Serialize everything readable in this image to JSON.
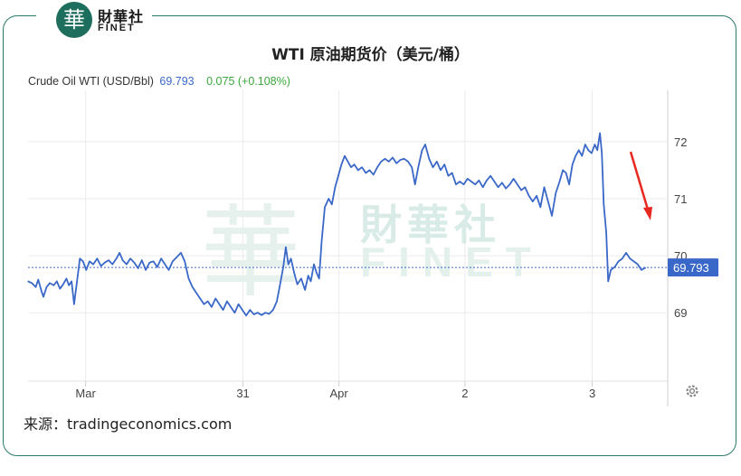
{
  "brand": {
    "logo_glyph": "華",
    "name_cn": "財華社",
    "name_en": "FINET",
    "color": "#1e6e5e"
  },
  "source": "来源：tradingeconomics.com",
  "settings_icon": "gear-icon",
  "chart_data": {
    "type": "line",
    "title": "WTI 原油期货价（美元/桶）",
    "legend": {
      "name": "Crude Oil WTI (USD/Bbl)",
      "value": "69.793",
      "change": "0.075 (+0.108%)"
    },
    "line_color": "#3a68c8",
    "last_value": 69.793,
    "last_value_label": "69.793",
    "ylim": [
      67.8,
      72.9
    ],
    "yticks": [
      {
        "label": "72",
        "value": 72
      },
      {
        "label": "71",
        "value": 71
      },
      {
        "label": "70",
        "value": 70
      },
      {
        "label": "69",
        "value": 69
      }
    ],
    "xlim": [
      0,
      100
    ],
    "xticks": [
      {
        "label": "Mar",
        "x": 9.0
      },
      {
        "label": "31",
        "x": 33.6
      },
      {
        "label": "Apr",
        "x": 48.6
      },
      {
        "label": "2",
        "x": 68.3
      },
      {
        "label": "3",
        "x": 88.2
      }
    ],
    "grid": true,
    "annotation": "red-arrow-down",
    "series": [
      {
        "values": [
          [
            0.0,
            69.55
          ],
          [
            0.6,
            69.52
          ],
          [
            1.2,
            69.45
          ],
          [
            1.6,
            69.58
          ],
          [
            2.1,
            69.38
          ],
          [
            2.4,
            69.28
          ],
          [
            2.9,
            69.45
          ],
          [
            3.4,
            69.52
          ],
          [
            4.0,
            69.48
          ],
          [
            4.5,
            69.55
          ],
          [
            5.0,
            69.42
          ],
          [
            5.5,
            69.5
          ],
          [
            6.0,
            69.6
          ],
          [
            6.4,
            69.48
          ],
          [
            6.8,
            69.55
          ],
          [
            7.2,
            69.15
          ],
          [
            7.6,
            69.5
          ],
          [
            8.1,
            69.95
          ],
          [
            8.6,
            69.9
          ],
          [
            9.1,
            69.75
          ],
          [
            9.6,
            69.9
          ],
          [
            10.2,
            69.85
          ],
          [
            10.8,
            69.95
          ],
          [
            11.4,
            69.82
          ],
          [
            12.0,
            69.88
          ],
          [
            12.6,
            69.92
          ],
          [
            13.2,
            69.85
          ],
          [
            13.8,
            69.95
          ],
          [
            14.3,
            70.05
          ],
          [
            14.8,
            69.92
          ],
          [
            15.4,
            69.85
          ],
          [
            16.0,
            69.95
          ],
          [
            16.6,
            69.88
          ],
          [
            17.2,
            69.78
          ],
          [
            17.8,
            69.92
          ],
          [
            18.4,
            69.75
          ],
          [
            19.0,
            69.88
          ],
          [
            19.6,
            69.9
          ],
          [
            20.2,
            69.8
          ],
          [
            20.8,
            69.95
          ],
          [
            21.4,
            69.85
          ],
          [
            22.0,
            69.75
          ],
          [
            22.6,
            69.9
          ],
          [
            23.3,
            69.98
          ],
          [
            23.9,
            70.05
          ],
          [
            24.5,
            69.9
          ],
          [
            25.1,
            69.6
          ],
          [
            25.7,
            69.45
          ],
          [
            26.3,
            69.35
          ],
          [
            26.9,
            69.25
          ],
          [
            27.5,
            69.15
          ],
          [
            28.1,
            69.2
          ],
          [
            28.7,
            69.1
          ],
          [
            29.3,
            69.25
          ],
          [
            29.9,
            69.15
          ],
          [
            30.5,
            69.05
          ],
          [
            31.1,
            69.2
          ],
          [
            31.7,
            69.1
          ],
          [
            32.3,
            69.0
          ],
          [
            32.9,
            69.15
          ],
          [
            33.5,
            69.05
          ],
          [
            34.1,
            68.95
          ],
          [
            34.7,
            69.05
          ],
          [
            35.3,
            68.97
          ],
          [
            35.9,
            69.0
          ],
          [
            36.5,
            68.96
          ],
          [
            37.1,
            69.0
          ],
          [
            37.7,
            68.98
          ],
          [
            38.3,
            69.05
          ],
          [
            38.9,
            69.2
          ],
          [
            39.4,
            69.5
          ],
          [
            39.9,
            69.8
          ],
          [
            40.3,
            70.15
          ],
          [
            40.7,
            69.85
          ],
          [
            41.1,
            69.95
          ],
          [
            41.6,
            69.7
          ],
          [
            42.1,
            69.5
          ],
          [
            42.7,
            69.6
          ],
          [
            43.3,
            69.4
          ],
          [
            43.8,
            69.65
          ],
          [
            44.2,
            69.55
          ],
          [
            44.7,
            69.85
          ],
          [
            45.1,
            69.7
          ],
          [
            45.5,
            69.6
          ],
          [
            45.9,
            70.25
          ],
          [
            46.4,
            70.85
          ],
          [
            47.0,
            71.0
          ],
          [
            47.5,
            70.9
          ],
          [
            48.0,
            71.2
          ],
          [
            48.5,
            71.4
          ],
          [
            49.0,
            71.6
          ],
          [
            49.5,
            71.75
          ],
          [
            50.0,
            71.65
          ],
          [
            50.5,
            71.55
          ],
          [
            51.0,
            71.6
          ],
          [
            51.6,
            71.5
          ],
          [
            52.2,
            71.55
          ],
          [
            52.8,
            71.45
          ],
          [
            53.4,
            71.5
          ],
          [
            54.0,
            71.42
          ],
          [
            54.6,
            71.55
          ],
          [
            55.2,
            71.65
          ],
          [
            55.8,
            71.7
          ],
          [
            56.4,
            71.65
          ],
          [
            57.0,
            71.72
          ],
          [
            57.6,
            71.62
          ],
          [
            58.2,
            71.68
          ],
          [
            58.8,
            71.7
          ],
          [
            59.4,
            71.65
          ],
          [
            60.0,
            71.55
          ],
          [
            60.5,
            71.25
          ],
          [
            61.0,
            71.55
          ],
          [
            61.6,
            71.85
          ],
          [
            62.1,
            71.95
          ],
          [
            62.7,
            71.7
          ],
          [
            63.3,
            71.55
          ],
          [
            63.9,
            71.65
          ],
          [
            64.5,
            71.5
          ],
          [
            65.1,
            71.6
          ],
          [
            65.7,
            71.4
          ],
          [
            66.3,
            71.45
          ],
          [
            66.9,
            71.25
          ],
          [
            67.5,
            71.3
          ],
          [
            68.1,
            71.25
          ],
          [
            68.7,
            71.35
          ],
          [
            69.3,
            71.3
          ],
          [
            69.9,
            71.25
          ],
          [
            70.5,
            71.32
          ],
          [
            71.1,
            71.2
          ],
          [
            71.7,
            71.32
          ],
          [
            72.3,
            71.4
          ],
          [
            72.9,
            71.3
          ],
          [
            73.5,
            71.2
          ],
          [
            74.1,
            71.28
          ],
          [
            74.7,
            71.18
          ],
          [
            75.3,
            71.25
          ],
          [
            75.9,
            71.35
          ],
          [
            76.5,
            71.25
          ],
          [
            77.1,
            71.15
          ],
          [
            77.7,
            71.2
          ],
          [
            78.3,
            71.05
          ],
          [
            78.9,
            70.95
          ],
          [
            79.5,
            71.05
          ],
          [
            80.1,
            70.85
          ],
          [
            80.7,
            71.2
          ],
          [
            81.3,
            70.95
          ],
          [
            81.9,
            70.7
          ],
          [
            82.5,
            71.1
          ],
          [
            83.1,
            71.3
          ],
          [
            83.6,
            71.5
          ],
          [
            84.1,
            71.45
          ],
          [
            84.6,
            71.25
          ],
          [
            85.1,
            71.6
          ],
          [
            85.6,
            71.75
          ],
          [
            86.1,
            71.85
          ],
          [
            86.6,
            71.75
          ],
          [
            87.1,
            71.95
          ],
          [
            87.6,
            71.85
          ],
          [
            88.1,
            71.8
          ],
          [
            88.6,
            71.95
          ],
          [
            89.0,
            71.85
          ],
          [
            89.4,
            72.15
          ],
          [
            89.7,
            71.8
          ],
          [
            90.0,
            70.9
          ],
          [
            90.4,
            70.4
          ],
          [
            90.7,
            69.55
          ],
          [
            91.1,
            69.75
          ],
          [
            91.7,
            69.8
          ],
          [
            92.3,
            69.9
          ],
          [
            92.9,
            69.95
          ],
          [
            93.5,
            70.05
          ],
          [
            94.1,
            69.95
          ],
          [
            94.7,
            69.9
          ],
          [
            95.3,
            69.85
          ],
          [
            95.9,
            69.75
          ],
          [
            96.5,
            69.79
          ]
        ]
      }
    ]
  }
}
